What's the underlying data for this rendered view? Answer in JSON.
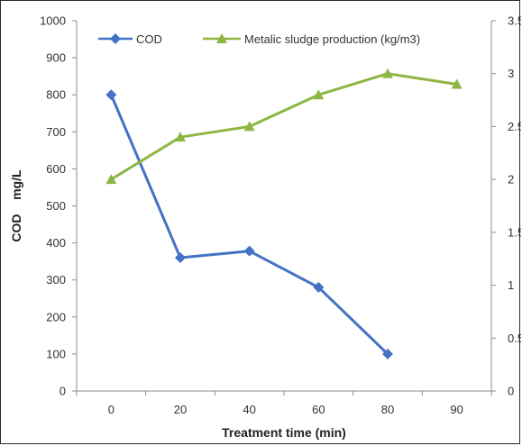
{
  "chart_data": {
    "type": "line",
    "categories": [
      "0",
      "20",
      "40",
      "60",
      "80",
      "90"
    ],
    "xlabel": "Treatment time (min)",
    "ylabel": "COD    mg/L",
    "ylim": [
      0,
      1000
    ],
    "yticks": [
      "0",
      "100",
      "200",
      "300",
      "400",
      "500",
      "600",
      "700",
      "800",
      "900",
      "1000"
    ],
    "y2lim": [
      0,
      3.5
    ],
    "y2ticks": [
      "0",
      "0.5",
      "1",
      "1.5",
      "2",
      "2.5",
      "3",
      "3.5"
    ],
    "grid": false,
    "legend_position": "top",
    "series": [
      {
        "name": "COD",
        "axis": "left",
        "color": "#4472C4",
        "marker": "diamond",
        "values": [
          800,
          360,
          378,
          280,
          100,
          null
        ]
      },
      {
        "name": "Metalic sludge production (kg/m3)",
        "axis": "right",
        "color": "#8DB643",
        "marker": "triangle",
        "values": [
          2.0,
          2.4,
          2.5,
          2.8,
          3.0,
          2.9
        ]
      }
    ]
  }
}
